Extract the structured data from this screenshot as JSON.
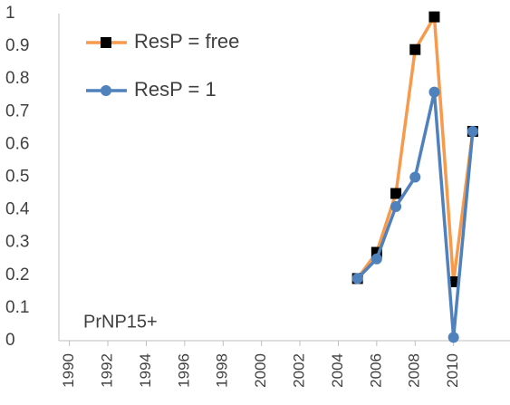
{
  "chart_data": {
    "type": "line",
    "x": [
      2005,
      2006,
      2007,
      2008,
      2009,
      2010,
      2011
    ],
    "series": [
      {
        "name": "ResP = free",
        "color": "#f79a4b",
        "marker": "square",
        "marker_color": "#000000",
        "values": [
          0.19,
          0.27,
          0.45,
          0.89,
          0.99,
          0.18,
          0.64
        ]
      },
      {
        "name": "ResP = 1",
        "color": "#4f81bd",
        "marker": "circle",
        "marker_color": "#4f81bd",
        "values": [
          0.19,
          0.25,
          0.41,
          0.5,
          0.76,
          0.01,
          0.64
        ]
      }
    ],
    "annotation": "PrNP15+",
    "xlim": [
      1989.45,
      2011.5
    ],
    "xticks": [
      1990,
      1992,
      1994,
      1996,
      1998,
      2000,
      2002,
      2004,
      2006,
      2008,
      2010
    ],
    "ylim": [
      0,
      1
    ],
    "yticks": [
      0,
      0.1,
      0.2,
      0.3,
      0.4,
      0.5,
      0.6,
      0.7,
      0.8,
      0.9,
      1
    ],
    "grid": false,
    "legend": "top-left"
  }
}
